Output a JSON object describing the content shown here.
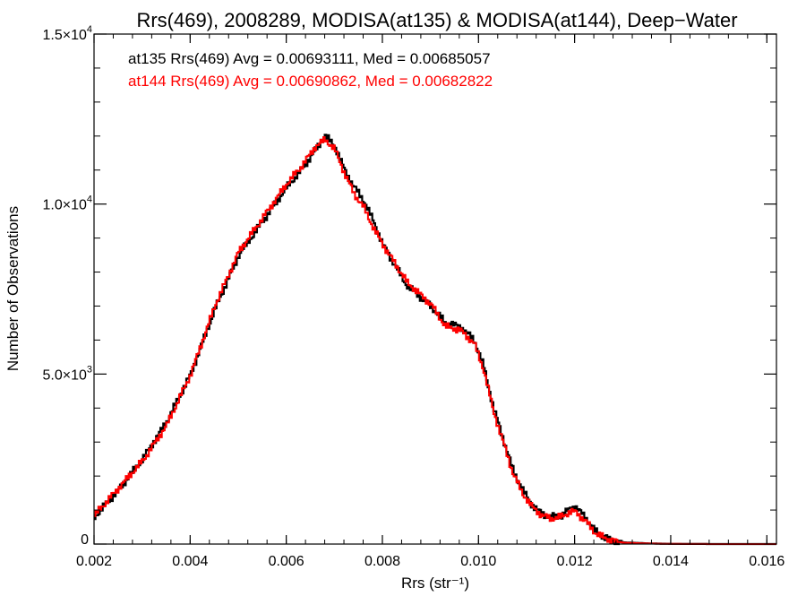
{
  "chart_data": {
    "type": "line",
    "title": "Rrs(469), 2008289, MODISA(at135) & MODISA(at144), Deep−Water",
    "xlabel": "Rrs (str⁻¹)",
    "ylabel": "Number of Observations",
    "xlim": [
      0.002,
      0.0162
    ],
    "ylim": [
      0,
      15000
    ],
    "x_ticks": [
      "0.002",
      "0.004",
      "0.006",
      "0.008",
      "0.010",
      "0.012",
      "0.014",
      "0.016"
    ],
    "y_ticks": [
      {
        "value": 0,
        "label": "0",
        "exp": ""
      },
      {
        "value": 5000,
        "label": "5.0×10",
        "exp": "3"
      },
      {
        "value": 10000,
        "label": "1.0×10",
        "exp": "4"
      },
      {
        "value": 15000,
        "label": "1.5×10",
        "exp": "4"
      }
    ],
    "grid": false,
    "annotations": [
      {
        "text": "at135 Rrs(469) Avg = 0.00693111, Med = 0.00685057",
        "color": "#000000"
      },
      {
        "text": "at144 Rrs(469) Avg = 0.00690862, Med = 0.00682822",
        "color": "#ff0000"
      }
    ],
    "series": [
      {
        "name": "at135",
        "color": "#000000",
        "x": [
          0.002,
          0.0025,
          0.003,
          0.0035,
          0.004,
          0.0045,
          0.005,
          0.0055,
          0.006,
          0.0063,
          0.0066,
          0.0068,
          0.007,
          0.0072,
          0.0074,
          0.0076,
          0.0078,
          0.008,
          0.0085,
          0.009,
          0.0093,
          0.0096,
          0.0099,
          0.0101,
          0.0103,
          0.0105,
          0.0107,
          0.0109,
          0.0111,
          0.0113,
          0.0115,
          0.0117,
          0.0119,
          0.012,
          0.0122,
          0.0124,
          0.0126,
          0.0128,
          0.013,
          0.0135,
          0.014,
          0.015,
          0.0162
        ],
        "y": [
          800,
          1600,
          2500,
          3600,
          5000,
          6900,
          8500,
          9500,
          10500,
          11000,
          11600,
          12000,
          11700,
          11000,
          10500,
          10100,
          9500,
          8800,
          7600,
          7000,
          6500,
          6400,
          6000,
          5200,
          4000,
          3100,
          2200,
          1600,
          1150,
          900,
          800,
          800,
          1050,
          1100,
          800,
          400,
          200,
          100,
          50,
          20,
          5,
          0,
          0
        ]
      },
      {
        "name": "at144",
        "color": "#ff0000",
        "x": [
          0.002,
          0.0025,
          0.003,
          0.0035,
          0.004,
          0.0045,
          0.005,
          0.0055,
          0.006,
          0.0063,
          0.0066,
          0.0068,
          0.007,
          0.0072,
          0.0074,
          0.0076,
          0.0078,
          0.008,
          0.0085,
          0.009,
          0.0093,
          0.0096,
          0.0099,
          0.0101,
          0.0103,
          0.0105,
          0.0107,
          0.0109,
          0.0111,
          0.0113,
          0.0115,
          0.0117,
          0.0119,
          0.012,
          0.0122,
          0.0124,
          0.0126,
          0.0128,
          0.013,
          0.0135,
          0.014,
          0.015,
          0.0162
        ],
        "y": [
          850,
          1650,
          2450,
          3500,
          5000,
          7000,
          8600,
          9600,
          10600,
          11100,
          11700,
          11900,
          11600,
          10900,
          10300,
          9900,
          9300,
          8800,
          7700,
          7050,
          6400,
          6300,
          5900,
          5100,
          3900,
          3000,
          2100,
          1500,
          1100,
          850,
          750,
          800,
          950,
          950,
          700,
          350,
          180,
          90,
          40,
          15,
          5,
          0,
          0
        ]
      }
    ]
  }
}
